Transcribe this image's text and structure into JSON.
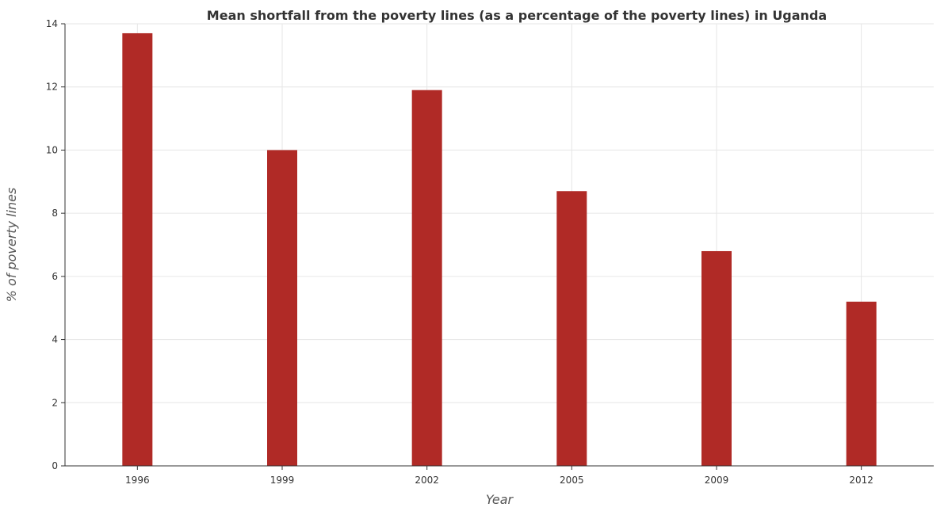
{
  "chart_data": {
    "type": "bar",
    "title": "Mean shortfall from the poverty lines (as a percentage of the poverty lines) in Uganda",
    "xlabel": "Year",
    "ylabel": "% of poverty lines",
    "categories": [
      "1996",
      "1999",
      "2002",
      "2005",
      "2009",
      "2012"
    ],
    "values": [
      13.7,
      10.0,
      11.9,
      8.7,
      6.8,
      5.2
    ],
    "ylim": [
      0,
      14
    ],
    "yticks": [
      "0",
      "2",
      "4",
      "6",
      "8",
      "10",
      "12",
      "14"
    ],
    "grid": true,
    "bar_color": "#b02a26"
  }
}
